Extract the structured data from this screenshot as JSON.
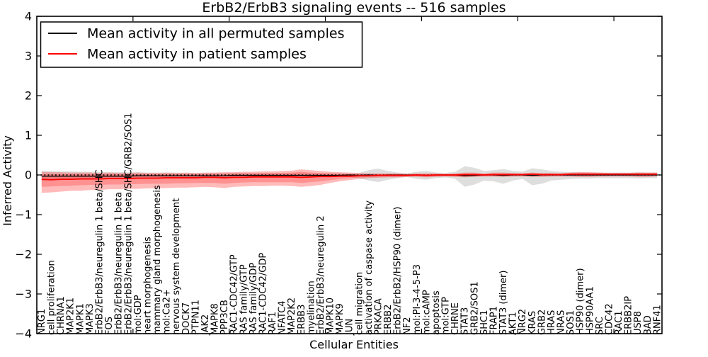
{
  "chart_data": {
    "type": "line",
    "title": "ErbB2/ErbB3 signaling events -- 516 samples",
    "xlabel": "Cellular Entities",
    "ylabel": "Inferred Activity",
    "ylim": [
      -4,
      4
    ],
    "yticks": [
      4,
      3,
      2,
      1,
      0,
      -1,
      -2,
      -3,
      -4
    ],
    "xlim": [
      0,
      65
    ],
    "major_xticks": [
      10,
      20,
      30,
      40,
      50,
      60
    ],
    "grid": false,
    "legend_position": "upper left",
    "categories": [
      "NRG1",
      "cell proliferation",
      "CHRNA1",
      "MAP2K1",
      "MAPK1",
      "MAPK3",
      "ErbB2/ErbB3/neuregulin 1 beta/SHC",
      "FOS",
      "ErbB2/ErbB3/neuregulin 1 beta",
      "ErbB2/ErbB3/neuregulin 1 beta/SHC/GRB2/SOS1",
      "mol:GDP",
      "heart morphogenesis",
      "mammary gland morphogenesis",
      "mol:Ca2+",
      "nervous system development",
      "DOCK7",
      "PTPN11",
      "JAK2",
      "MAPK8",
      "PPP3CB",
      "RAC1-CDC42/GTP",
      "RAS family/GTP",
      "RAS family/GDP",
      "RAC1-CDC42/GDP",
      "RAF1",
      "NFATC4",
      "MAP2K2",
      "ERBB3",
      "myelination",
      "ErbB2/ErbB3/neuregulin 2",
      "MAPK10",
      "MAPK9",
      "JUN",
      "cell migration",
      "activation of caspase activity",
      "PRKACA",
      "ERBB2",
      "ErbB2/ErbB2/HSP90 (dimer)",
      "NF2",
      "mol:PI-3-4-5-P3",
      "mol:cAMP",
      "apoptosis",
      "mol:GTP",
      "CHRNE",
      "STAT3",
      "GRB2/SOS1",
      "SHC1",
      "FRAP1",
      "STAT3 (dimer)",
      "AKT1",
      "NRG2",
      "KRAS",
      "GRB2",
      "HRAS",
      "NRAS",
      "SOS1",
      "HSP90 (dimer)",
      "HSP90AA1",
      "SRC",
      "CDC42",
      "RAC1",
      "ERBB2IP",
      "USP8",
      "BAD",
      "RNF41"
    ],
    "series": [
      {
        "name": "Mean activity in all permuted samples",
        "color": "#000000",
        "style": "solid",
        "values": [
          -0.03,
          -0.03,
          -0.03,
          -0.03,
          -0.03,
          -0.03,
          -0.03,
          -0.03,
          -0.03,
          -0.03,
          -0.02,
          -0.02,
          -0.02,
          -0.02,
          -0.02,
          -0.02,
          -0.02,
          -0.02,
          -0.02,
          -0.02,
          -0.01,
          -0.01,
          -0.01,
          -0.01,
          -0.01,
          -0.01,
          -0.01,
          -0.01,
          -0.01,
          -0.01,
          -0.01,
          -0.01,
          0,
          -0.01,
          0,
          -0.01,
          0,
          0,
          0,
          0,
          -0.01,
          0,
          0,
          0,
          -0.02,
          -0.01,
          0,
          0,
          -0.01,
          0,
          0,
          -0.01,
          0,
          0,
          0,
          0,
          0,
          0,
          0,
          0,
          0,
          0,
          0,
          0,
          0
        ]
      },
      {
        "name": "Mean activity in patient samples",
        "color": "#ff0000",
        "style": "solid",
        "values": [
          -0.11,
          -0.12,
          -0.11,
          -0.11,
          -0.1,
          -0.1,
          -0.1,
          -0.09,
          -0.09,
          -0.09,
          -0.08,
          -0.08,
          -0.08,
          -0.07,
          -0.07,
          -0.07,
          -0.07,
          -0.06,
          -0.06,
          -0.07,
          -0.06,
          -0.06,
          -0.05,
          -0.05,
          -0.05,
          -0.05,
          -0.05,
          -0.06,
          -0.05,
          -0.04,
          -0.04,
          -0.03,
          -0.03,
          -0.02,
          -0.02,
          -0.01,
          -0.01,
          -0.01,
          -0.01,
          0,
          -0.01,
          0,
          0,
          0,
          0.01,
          0.01,
          0,
          0.01,
          0.01,
          0.01,
          0.01,
          0.02,
          0.01,
          0.01,
          0.01,
          0.02,
          0.02,
          0.02,
          0.02,
          0.02,
          0.02,
          0.02,
          0.02,
          0.02,
          0.02
        ]
      }
    ],
    "reference_line": {
      "y": 0,
      "style": "dotted",
      "color": "#000000"
    },
    "bands": [
      {
        "name": "permuted-samples-range",
        "color": "#999999",
        "opacity": 0.32,
        "upper": [
          0.1,
          0.1,
          0.09,
          0.09,
          0.08,
          0.08,
          0.08,
          0.07,
          0.07,
          0.07,
          0.07,
          0.06,
          0.06,
          0.06,
          0.06,
          0.05,
          0.05,
          0.05,
          0.05,
          0.05,
          0.05,
          0.05,
          0.04,
          0.04,
          0.04,
          0.04,
          0.04,
          0.05,
          0.04,
          0.04,
          0.04,
          0.04,
          0.03,
          0.05,
          0.12,
          0.16,
          0.1,
          0.06,
          0.04,
          0.08,
          0.1,
          0.06,
          0.05,
          0.08,
          0.22,
          0.18,
          0.1,
          0.12,
          0.15,
          0.1,
          0.08,
          0.17,
          0.14,
          0.1,
          0.08,
          0.07,
          0.07,
          0.06,
          0.06,
          0.06,
          0.06,
          0.06,
          0.07,
          0.06,
          0.06
        ],
        "lower": [
          -0.15,
          -0.14,
          -0.13,
          -0.12,
          -0.12,
          -0.11,
          -0.11,
          -0.1,
          -0.1,
          -0.1,
          -0.09,
          -0.09,
          -0.09,
          -0.08,
          -0.08,
          -0.08,
          -0.08,
          -0.07,
          -0.07,
          -0.07,
          -0.07,
          -0.07,
          -0.06,
          -0.06,
          -0.06,
          -0.06,
          -0.06,
          -0.07,
          -0.06,
          -0.06,
          -0.06,
          -0.05,
          -0.05,
          -0.08,
          -0.14,
          -0.18,
          -0.12,
          -0.08,
          -0.05,
          -0.1,
          -0.12,
          -0.08,
          -0.06,
          -0.1,
          -0.3,
          -0.24,
          -0.14,
          -0.16,
          -0.22,
          -0.14,
          -0.1,
          -0.26,
          -0.22,
          -0.14,
          -0.12,
          -0.1,
          -0.09,
          -0.09,
          -0.08,
          -0.08,
          -0.08,
          -0.08,
          -0.09,
          -0.08,
          -0.08
        ]
      },
      {
        "name": "patient-samples-range-outer",
        "color": "#ff0000",
        "opacity": 0.27,
        "upper": [
          0.08,
          0.07,
          0.07,
          0.06,
          0.06,
          0.06,
          0.05,
          0.06,
          0.05,
          0.05,
          0.06,
          0.05,
          0.05,
          0.06,
          0.05,
          0.06,
          0.05,
          0.06,
          0.06,
          0.07,
          0.07,
          0.08,
          0.08,
          0.09,
          0.09,
          0.1,
          0.11,
          0.14,
          0.12,
          0.1,
          0.08,
          0.07,
          0.06,
          0.05,
          0.04,
          0.04,
          0.04,
          0.04,
          0.03,
          0.04,
          0.04,
          0.04,
          0.03,
          0.04,
          0.06,
          0.06,
          0.04,
          0.06,
          0.06,
          0.05,
          0.04,
          0.06,
          0.05,
          0.05,
          0.04,
          0.06,
          0.07,
          0.07,
          0.06,
          0.05,
          0.05,
          0.05,
          0.06,
          0.06,
          0.06
        ],
        "lower": [
          -0.45,
          -0.44,
          -0.42,
          -0.4,
          -0.4,
          -0.38,
          -0.38,
          -0.36,
          -0.36,
          -0.35,
          -0.35,
          -0.34,
          -0.34,
          -0.33,
          -0.32,
          -0.32,
          -0.31,
          -0.3,
          -0.31,
          -0.33,
          -0.3,
          -0.29,
          -0.28,
          -0.28,
          -0.27,
          -0.27,
          -0.28,
          -0.3,
          -0.28,
          -0.25,
          -0.2,
          -0.16,
          -0.13,
          -0.1,
          -0.08,
          -0.07,
          -0.06,
          -0.06,
          -0.05,
          -0.05,
          -0.06,
          -0.05,
          -0.04,
          -0.05,
          -0.06,
          -0.05,
          -0.04,
          -0.04,
          -0.05,
          -0.04,
          -0.04,
          -0.05,
          -0.05,
          -0.04,
          -0.04,
          -0.04,
          -0.05,
          -0.05,
          -0.04,
          -0.04,
          -0.04,
          -0.04,
          -0.05,
          -0.05,
          -0.04
        ]
      },
      {
        "name": "patient-samples-range-inner",
        "color": "#ff0000",
        "opacity": 0.22,
        "upper": [
          0.02,
          0.02,
          0.02,
          0.02,
          0.02,
          0.02,
          0.02,
          0.02,
          0.02,
          0.02,
          0.02,
          0.02,
          0.02,
          0.02,
          0.02,
          0.02,
          0.02,
          0.03,
          0.03,
          0.03,
          0.04,
          0.04,
          0.04,
          0.05,
          0.05,
          0.05,
          0.06,
          0.08,
          0.06,
          0.05,
          0.04,
          0.03,
          0.03,
          0.02,
          0.02,
          0.02,
          0.02,
          0.02,
          0.01,
          0.02,
          0.02,
          0.02,
          0.01,
          0.02,
          0.03,
          0.03,
          0.02,
          0.03,
          0.03,
          0.02,
          0.02,
          0.03,
          0.02,
          0.02,
          0.02,
          0.03,
          0.03,
          0.03,
          0.03,
          0.02,
          0.02,
          0.02,
          0.03,
          0.03,
          0.03
        ],
        "lower": [
          -0.3,
          -0.29,
          -0.28,
          -0.27,
          -0.26,
          -0.25,
          -0.25,
          -0.24,
          -0.24,
          -0.23,
          -0.23,
          -0.22,
          -0.22,
          -0.22,
          -0.21,
          -0.21,
          -0.2,
          -0.2,
          -0.2,
          -0.22,
          -0.2,
          -0.19,
          -0.18,
          -0.18,
          -0.18,
          -0.18,
          -0.18,
          -0.2,
          -0.18,
          -0.16,
          -0.13,
          -0.1,
          -0.08,
          -0.06,
          -0.05,
          -0.04,
          -0.04,
          -0.04,
          -0.03,
          -0.03,
          -0.04,
          -0.03,
          -0.03,
          -0.03,
          -0.04,
          -0.03,
          -0.03,
          -0.03,
          -0.03,
          -0.03,
          -0.02,
          -0.03,
          -0.03,
          -0.03,
          -0.02,
          -0.03,
          -0.03,
          -0.03,
          -0.03,
          -0.02,
          -0.02,
          -0.02,
          -0.03,
          -0.03,
          -0.02
        ]
      }
    ]
  }
}
